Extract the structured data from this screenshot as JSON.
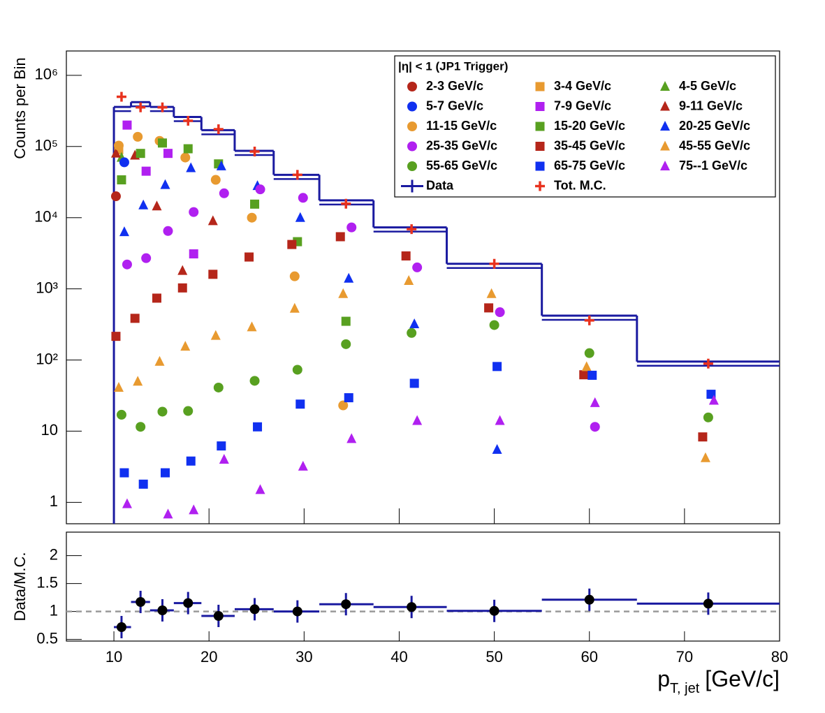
{
  "chart_data": [
    {
      "type": "scatter",
      "log_y": true,
      "y_label": "Counts per Bin",
      "legend_title": "|η| < 1 (JP1 Trigger)",
      "xlim": [
        5,
        80
      ],
      "ylim": [
        0.5,
        2200000
      ],
      "yticks": [
        1,
        10,
        {
          "value": 100,
          "label": "10²"
        },
        {
          "value": 1000,
          "label": "10³"
        },
        {
          "value": 10000,
          "label": "10⁴"
        },
        {
          "value": 100000,
          "label": "10⁵"
        },
        {
          "value": 1000000,
          "label": "10⁶"
        }
      ],
      "x": [
        10.8,
        12.8,
        15.1,
        17.8,
        21.0,
        24.8,
        29.3,
        34.4,
        41.3,
        50.0,
        60.0,
        72.5
      ],
      "bins": [
        10,
        11.8,
        13.8,
        16.3,
        19.2,
        22.7,
        26.8,
        31.6,
        37.3,
        45,
        55,
        65,
        80
      ],
      "series": [
        {
          "name": "2-3 GeV/c",
          "color": "#b5261a",
          "marker": "circle",
          "values": [
            20000,
            null,
            null,
            null,
            null,
            null,
            null,
            null,
            null,
            null,
            null,
            null
          ]
        },
        {
          "name": "3-4 GeV/c",
          "color": "#e89a30",
          "marker": "square",
          "values": [
            90000,
            null,
            null,
            null,
            null,
            null,
            null,
            null,
            null,
            null,
            null,
            null
          ]
        },
        {
          "name": "4-5 GeV/c",
          "color": "#58a020",
          "marker": "triangle",
          "values": [
            70000,
            null,
            null,
            null,
            null,
            null,
            null,
            null,
            null,
            null,
            null,
            null
          ]
        },
        {
          "name": "5-7 GeV/c",
          "color": "#1030f0",
          "marker": "circle",
          "values": [
            60000,
            null,
            null,
            null,
            null,
            null,
            null,
            null,
            null,
            null,
            null,
            null
          ]
        },
        {
          "name": "7-9 GeV/c",
          "color": "#b020f0",
          "marker": "square",
          "values": [
            200000,
            45000,
            80000,
            3100,
            null,
            null,
            null,
            null,
            null,
            null,
            null,
            null
          ]
        },
        {
          "name": "9-11 GeV/c",
          "color": "#b5261a",
          "marker": "triangle",
          "values": [
            80000,
            75000,
            14500,
            1800,
            9000,
            null,
            null,
            null,
            null,
            null,
            null,
            null
          ]
        },
        {
          "name": "11-15 GeV/c",
          "color": "#e89a30",
          "marker": "circle",
          "values": [
            103000,
            137000,
            120000,
            70000,
            34000,
            10000,
            1500,
            23,
            null,
            null,
            null,
            null
          ]
        },
        {
          "name": "15-20 GeV/c",
          "color": "#58a020",
          "marker": "square",
          "values": [
            34000,
            80000,
            112000,
            93000,
            57000,
            15500,
            4600,
            350,
            null,
            null,
            null,
            null
          ]
        },
        {
          "name": "20-25 GeV/c",
          "color": "#1030f0",
          "marker": "triangle",
          "values": [
            6300,
            15000,
            29000,
            50000,
            53000,
            28000,
            10000,
            1400,
            320,
            5.5,
            null,
            null
          ]
        },
        {
          "name": "25-35 GeV/c",
          "color": "#b020f0",
          "marker": "circle",
          "values": [
            2200,
            2700,
            6500,
            12000,
            22000,
            25000,
            19000,
            7300,
            2000,
            470,
            11.5,
            null
          ]
        },
        {
          "name": "35-45 GeV/c",
          "color": "#b5261a",
          "marker": "square",
          "values": [
            215,
            385,
            740,
            1030,
            1600,
            2800,
            4200,
            5400,
            2900,
            540,
            62,
            8.3
          ]
        },
        {
          "name": "45-55 GeV/c",
          "color": "#e89a30",
          "marker": "triangle",
          "values": [
            41,
            50,
            95,
            155,
            220,
            290,
            530,
            850,
            1300,
            850,
            80,
            4.2
          ]
        },
        {
          "name": "55-65 GeV/c",
          "color": "#58a020",
          "marker": "circle",
          "values": [
            17,
            11.5,
            18.8,
            19.2,
            41,
            51,
            73,
            167,
            240,
            310,
            125,
            15.6
          ]
        },
        {
          "name": "65-75 GeV/c",
          "color": "#1030f0",
          "marker": "square",
          "values": [
            2.6,
            1.8,
            2.6,
            3.8,
            6.2,
            11.5,
            24,
            29.5,
            47,
            81,
            61,
            33
          ]
        },
        {
          "name": "75--1 GeV/c",
          "color": "#b020f0",
          "marker": "triangle",
          "values": [
            0.95,
            null,
            0.68,
            0.78,
            4,
            1.5,
            3.2,
            7.8,
            14,
            14,
            25,
            27
          ]
        }
      ],
      "data_hist": {
        "name": "Data",
        "color": "#1a1aa0",
        "values": [
          360000,
          420000,
          360000,
          260000,
          170000,
          87000,
          40000,
          17500,
          7300,
          2250,
          420,
          95
        ]
      },
      "mc": {
        "name": "Tot. M.C.",
        "color": "#e8321e",
        "values": [
          500000,
          355000,
          355000,
          230000,
          175000,
          85000,
          40000,
          15700,
          6900,
          2250,
          360,
          89
        ]
      }
    },
    {
      "type": "scatter",
      "y_label": "Data/M.C.",
      "x_label": {
        "main": "p",
        "sub": "T, jet",
        "unit": "[GeV/c]"
      },
      "xlim": [
        5,
        80
      ],
      "xticks": [
        10,
        20,
        30,
        40,
        50,
        60,
        70,
        80
      ],
      "ylim": [
        0.47,
        2.42
      ],
      "yticks": [
        0.5,
        1,
        1.5,
        2
      ],
      "x": [
        10.8,
        12.8,
        15.1,
        17.8,
        21.0,
        24.8,
        29.3,
        34.4,
        41.3,
        50.0,
        60.0,
        72.5
      ],
      "bins": [
        10,
        11.8,
        13.8,
        16.3,
        19.2,
        22.7,
        26.8,
        31.6,
        37.3,
        45,
        55,
        65,
        80
      ],
      "values": [
        0.72,
        1.17,
        1.02,
        1.15,
        0.92,
        1.04,
        1.0,
        1.13,
        1.08,
        1.01,
        1.21,
        1.14
      ],
      "color": "#000000",
      "bar_color": "#1a1aa0",
      "reference_line": 1
    }
  ]
}
